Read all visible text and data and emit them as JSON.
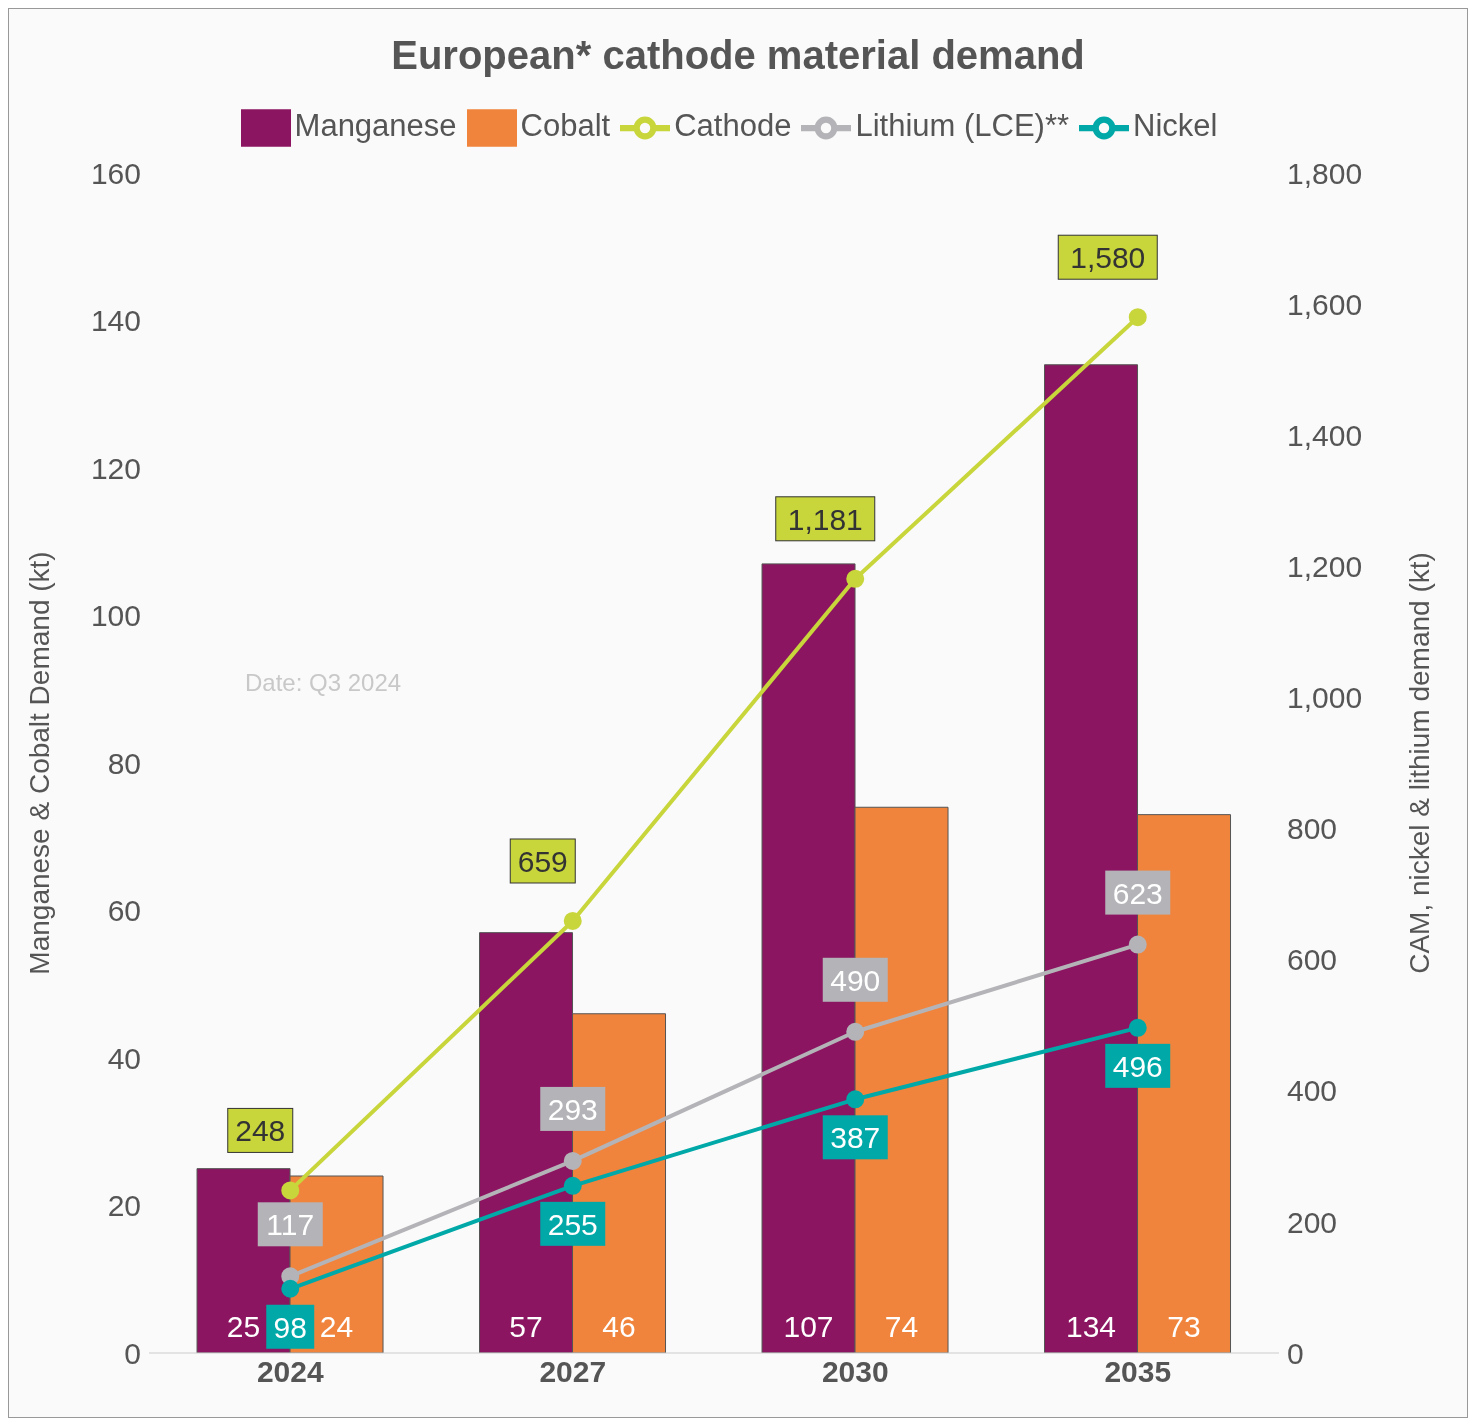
{
  "chart_data": {
    "type": "bar",
    "title": "European* cathode material demand",
    "categories": [
      "2024",
      "2027",
      "2030",
      "2035"
    ],
    "series": [
      {
        "name": "Manganese",
        "color": "#8b1560",
        "values": [
          25,
          57,
          107,
          134
        ]
      },
      {
        "name": "Cobalt",
        "color": "#f0843c",
        "values": [
          24,
          46,
          74,
          73
        ]
      },
      {
        "name": "Cathode",
        "type": "line",
        "axis": "y2",
        "color": "#c8d63c",
        "values": [
          248,
          659,
          1181,
          1580
        ],
        "value_labels": [
          "248",
          "659",
          "1,181",
          "1,580"
        ]
      },
      {
        "name": "Lithium (LCE)**",
        "type": "line",
        "axis": "y2",
        "color": "#b4b4b8",
        "values": [
          117,
          293,
          490,
          623
        ]
      },
      {
        "name": "Nickel",
        "type": "line",
        "axis": "y2",
        "color": "#00a8a8",
        "values": [
          98,
          255,
          387,
          496
        ]
      }
    ],
    "ylabel": "Manganese & Cobalt Demand (kt)",
    "y2label": "CAM, nickel & lithium demand (kt)",
    "ylim": [
      0,
      160
    ],
    "yticks": [
      0,
      20,
      40,
      60,
      80,
      100,
      120,
      140,
      160
    ],
    "y2lim": [
      0,
      1800
    ],
    "y2ticks": [
      0,
      200,
      400,
      600,
      800,
      {
        "value": 1000,
        "label": "1,000"
      },
      {
        "value": 1200,
        "label": "1,200"
      },
      {
        "value": 1400,
        "label": "1,400"
      },
      {
        "value": 1600,
        "label": "1,600"
      },
      {
        "value": 1800,
        "label": "1,800"
      }
    ],
    "annotations": [
      "Date: Q3 2024"
    ],
    "data_labels": true,
    "legend": "top",
    "grid": false,
    "marker": "circle"
  }
}
